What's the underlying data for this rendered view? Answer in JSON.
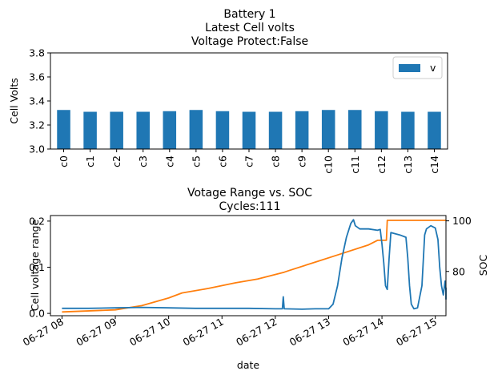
{
  "chart_data": [
    {
      "type": "bar",
      "title_lines": [
        "Battery 1",
        "Latest Cell volts",
        "Voltage Protect:False"
      ],
      "xlabel": "",
      "ylabel": "Cell Volts",
      "ylim": [
        3.0,
        3.8
      ],
      "yticks": [
        "3.0",
        "3.2",
        "3.4",
        "3.6",
        "3.8"
      ],
      "categories": [
        "c0",
        "c1",
        "c2",
        "c3",
        "c4",
        "c5",
        "c6",
        "c7",
        "c8",
        "c9",
        "c10",
        "c11",
        "c12",
        "c13",
        "c14"
      ],
      "series": [
        {
          "name": "v",
          "values": [
            3.325,
            3.31,
            3.31,
            3.31,
            3.315,
            3.325,
            3.315,
            3.31,
            3.31,
            3.315,
            3.325,
            3.325,
            3.315,
            3.31,
            3.31
          ]
        }
      ],
      "legend": "top-right",
      "grid": false,
      "colors": {
        "bar": "#1f77b4"
      }
    },
    {
      "type": "line",
      "title_lines": [
        "Votage Range vs. SOC",
        "Cycles:111"
      ],
      "xlabel": "date",
      "ylabel": "Cell voltage range",
      "ylabel_right": "SOC",
      "xlim": [
        "2024-06-27 07:47",
        "2024-06-27 15:12"
      ],
      "xticks": [
        "06-27 08",
        "06-27 09",
        "06-27 10",
        "06-27 11",
        "06-27 12",
        "06-27 13",
        "06-27 14",
        "06-27 15"
      ],
      "ylim": [
        -0.005,
        0.212
      ],
      "yticks": [
        "0.0",
        "0.1",
        "0.2"
      ],
      "ylim_right": [
        62.5,
        102.1
      ],
      "yticks_right": [
        "80",
        "100"
      ],
      "grid": false,
      "colors": {
        "range": "#1f77b4",
        "soc": "#ff7f0e"
      },
      "series": [
        {
          "axis": "left",
          "points": [
            [
              "2024-06-27 08:00",
              0.011
            ],
            [
              "2024-06-27 08:30",
              0.011
            ],
            [
              "2024-06-27 09:00",
              0.012
            ],
            [
              "2024-06-27 09:30",
              0.013
            ],
            [
              "2024-06-27 10:00",
              0.012
            ],
            [
              "2024-06-27 10:30",
              0.011
            ],
            [
              "2024-06-27 11:00",
              0.011
            ],
            [
              "2024-06-27 11:30",
              0.011
            ],
            [
              "2024-06-27 12:00",
              0.01
            ],
            [
              "2024-06-27 12:08",
              0.01
            ],
            [
              "2024-06-27 12:09",
              0.036
            ],
            [
              "2024-06-27 12:10",
              0.01
            ],
            [
              "2024-06-27 12:30",
              0.009
            ],
            [
              "2024-06-27 12:45",
              0.01
            ],
            [
              "2024-06-27 13:00",
              0.01
            ],
            [
              "2024-06-27 13:05",
              0.02
            ],
            [
              "2024-06-27 13:10",
              0.06
            ],
            [
              "2024-06-27 13:15",
              0.12
            ],
            [
              "2024-06-27 13:20",
              0.165
            ],
            [
              "2024-06-27 13:25",
              0.195
            ],
            [
              "2024-06-27 13:28",
              0.203
            ],
            [
              "2024-06-27 13:30",
              0.19
            ],
            [
              "2024-06-27 13:35",
              0.183
            ],
            [
              "2024-06-27 13:45",
              0.183
            ],
            [
              "2024-06-27 13:55",
              0.18
            ],
            [
              "2024-06-27 13:58",
              0.182
            ],
            [
              "2024-06-27 14:00",
              0.15
            ],
            [
              "2024-06-27 14:02",
              0.11
            ],
            [
              "2024-06-27 14:04",
              0.06
            ],
            [
              "2024-06-27 14:06",
              0.052
            ],
            [
              "2024-06-27 14:08",
              0.12
            ],
            [
              "2024-06-27 14:10",
              0.175
            ],
            [
              "2024-06-27 14:20",
              0.17
            ],
            [
              "2024-06-27 14:27",
              0.165
            ],
            [
              "2024-06-27 14:29",
              0.12
            ],
            [
              "2024-06-27 14:31",
              0.06
            ],
            [
              "2024-06-27 14:33",
              0.02
            ],
            [
              "2024-06-27 14:36",
              0.01
            ],
            [
              "2024-06-27 14:40",
              0.012
            ],
            [
              "2024-06-27 14:45",
              0.06
            ],
            [
              "2024-06-27 14:48",
              0.17
            ],
            [
              "2024-06-27 14:50",
              0.183
            ],
            [
              "2024-06-27 14:55",
              0.19
            ],
            [
              "2024-06-27 15:00",
              0.185
            ],
            [
              "2024-06-27 15:03",
              0.16
            ],
            [
              "2024-06-27 15:05",
              0.1
            ],
            [
              "2024-06-27 15:07",
              0.06
            ],
            [
              "2024-06-27 15:09",
              0.04
            ],
            [
              "2024-06-27 15:11",
              0.07
            ],
            [
              "2024-06-27 15:13",
              0.05
            ],
            [
              "2024-06-27 15:16",
              0.055
            ],
            [
              "2024-06-27 15:18",
              0.03
            ]
          ]
        },
        {
          "axis": "right",
          "points": [
            [
              "2024-06-27 08:00",
              64.0
            ],
            [
              "2024-06-27 09:00",
              64.8
            ],
            [
              "2024-06-27 09:30",
              66.5
            ],
            [
              "2024-06-27 10:00",
              69.5
            ],
            [
              "2024-06-27 10:15",
              71.5
            ],
            [
              "2024-06-27 10:45",
              73.3
            ],
            [
              "2024-06-27 11:15",
              75.5
            ],
            [
              "2024-06-27 11:40",
              77.0
            ],
            [
              "2024-06-27 12:10",
              79.7
            ],
            [
              "2024-06-27 12:15",
              80.3
            ],
            [
              "2024-06-27 12:45",
              83.7
            ],
            [
              "2024-06-27 13:10",
              86.5
            ],
            [
              "2024-06-27 13:45",
              90.5
            ],
            [
              "2024-06-27 13:55",
              92.3
            ],
            [
              "2024-06-27 14:05",
              92.3
            ],
            [
              "2024-06-27 14:06",
              100.2
            ],
            [
              "2024-06-27 15:40",
              100.2
            ]
          ]
        }
      ]
    }
  ]
}
